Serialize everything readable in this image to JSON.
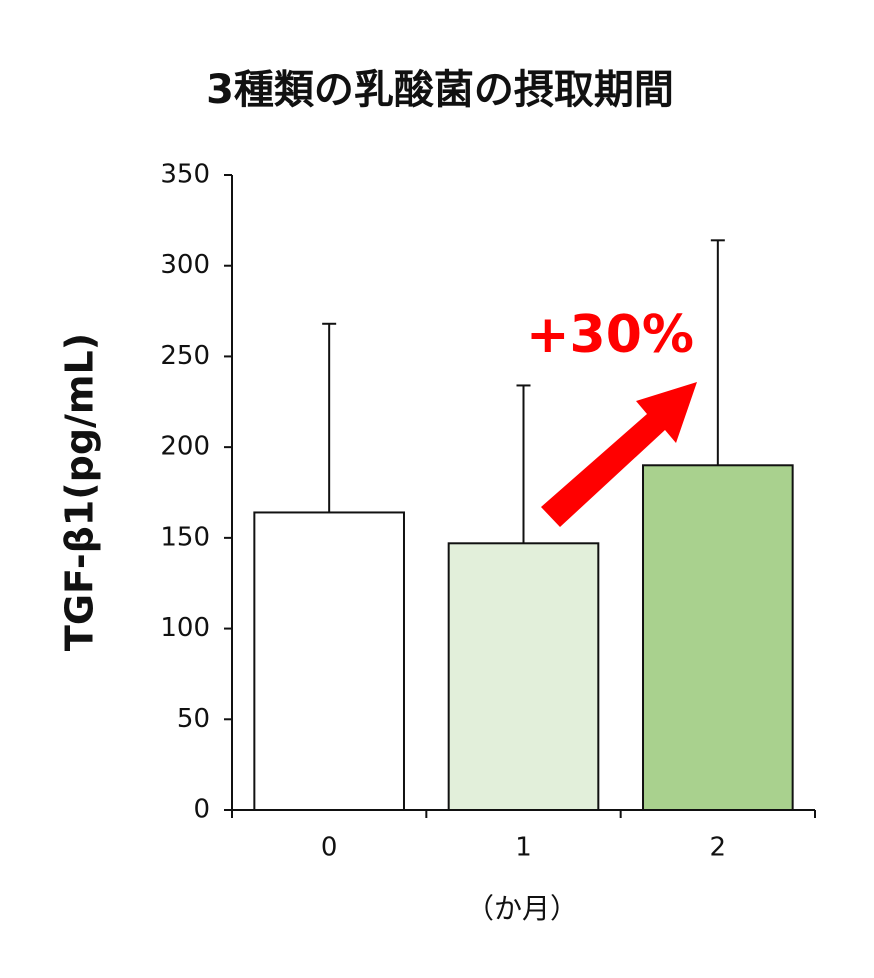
{
  "chart_data": {
    "type": "bar",
    "title": "3種類の乳酸菌の摂取期間",
    "categories": [
      "0",
      "1",
      "2"
    ],
    "values": [
      164,
      147,
      190
    ],
    "errors": [
      104,
      87,
      124
    ],
    "colors": [
      "#ffffff",
      "#e2efda",
      "#a9d18e"
    ],
    "ylabel": "TGF-β1(pg/mL)",
    "xlabel": "（か月）",
    "annotation": "+30%",
    "ylim": [
      0,
      350
    ],
    "yticks": [
      0,
      50,
      100,
      150,
      200,
      250,
      300,
      350
    ],
    "grid": false
  }
}
